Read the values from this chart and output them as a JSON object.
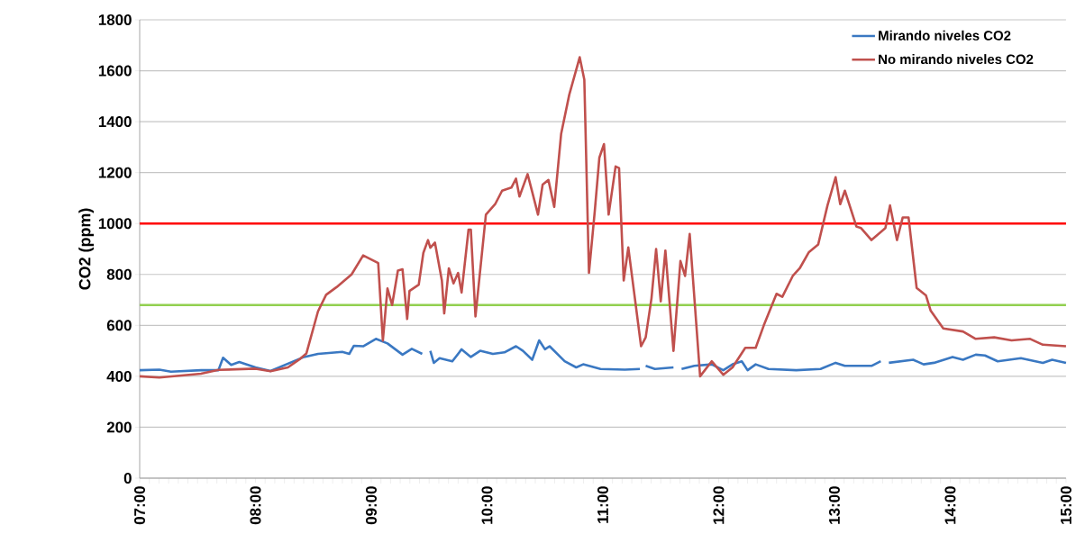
{
  "chart_data": {
    "type": "line",
    "ylabel": "CO2 (ppm)",
    "xlim": [
      7,
      15
    ],
    "ylim": [
      0,
      1800
    ],
    "xticks": [
      {
        "value": 7,
        "label": "07:00"
      },
      {
        "value": 8,
        "label": "08:00"
      },
      {
        "value": 9,
        "label": "09:00"
      },
      {
        "value": 10,
        "label": "10:00"
      },
      {
        "value": 11,
        "label": "11:00"
      },
      {
        "value": 12,
        "label": "12:00"
      },
      {
        "value": 13,
        "label": "13:00"
      },
      {
        "value": 14,
        "label": "14:00"
      },
      {
        "value": 15,
        "label": "15:00"
      }
    ],
    "yticks": [
      0,
      200,
      400,
      600,
      800,
      1000,
      1200,
      1400,
      1600,
      1800
    ],
    "grid": "y",
    "legend": "top right",
    "marker": "none",
    "line_style": "solid",
    "ref_lines": [
      {
        "axis": "y",
        "value": 1000,
        "color": "#ff0000"
      },
      {
        "axis": "y",
        "value": 680,
        "color": "#92d050"
      }
    ],
    "series": [
      {
        "name": "Mirando niveles CO2",
        "color": "#3a78c2",
        "x": [
          7.0,
          7.17,
          7.27,
          7.53,
          7.68,
          7.72,
          7.79,
          7.86,
          8.0,
          8.13,
          8.42,
          8.54,
          8.75,
          8.81,
          8.85,
          8.93,
          9.04,
          9.14,
          9.27,
          9.35,
          9.44,
          9.47,
          9.51,
          9.54,
          9.59,
          9.7,
          9.78,
          9.86,
          9.94,
          10.05,
          10.15,
          10.25,
          10.31,
          10.39,
          10.45,
          10.5,
          10.54,
          10.67,
          10.77,
          10.83,
          10.98,
          11.19,
          11.32,
          11.35,
          11.37,
          11.45,
          11.61,
          11.64,
          11.68,
          11.79,
          11.94,
          12.04,
          12.12,
          12.2,
          12.25,
          12.32,
          12.43,
          12.67,
          12.88,
          13.01,
          13.09,
          13.32,
          13.4,
          13.43,
          13.47,
          13.68,
          13.77,
          13.86,
          14.02,
          14.11,
          14.22,
          14.3,
          14.41,
          14.61,
          14.8,
          14.88,
          15.0
        ],
        "values": [
          424,
          426,
          418,
          424,
          424,
          473,
          445,
          456,
          435,
          421,
          476,
          488,
          496,
          488,
          520,
          518,
          547,
          529,
          485,
          508,
          488,
          null,
          500,
          453,
          471,
          459,
          506,
          476,
          500,
          488,
          494,
          518,
          500,
          465,
          541,
          506,
          518,
          459,
          435,
          447,
          429,
          426,
          429,
          null,
          441,
          429,
          435,
          null,
          429,
          441,
          447,
          424,
          447,
          459,
          424,
          447,
          429,
          424,
          429,
          453,
          441,
          441,
          459,
          null,
          453,
          465,
          447,
          453,
          476,
          465,
          485,
          482,
          459,
          471,
          453,
          465,
          453
        ]
      },
      {
        "name": "No mirando niveles CO2",
        "color": "#c0504d",
        "x": [
          7.0,
          7.17,
          7.53,
          7.68,
          8.0,
          8.13,
          8.28,
          8.39,
          8.44,
          8.54,
          8.61,
          8.7,
          8.83,
          8.93,
          9.06,
          9.1,
          9.14,
          9.18,
          9.23,
          9.27,
          9.31,
          9.33,
          9.41,
          9.45,
          9.49,
          9.51,
          9.55,
          9.61,
          9.63,
          9.67,
          9.71,
          9.75,
          9.78,
          9.84,
          9.86,
          9.9,
          9.99,
          10.07,
          10.13,
          10.21,
          10.25,
          10.28,
          10.35,
          10.39,
          10.44,
          10.48,
          10.53,
          10.58,
          10.64,
          10.71,
          10.8,
          10.84,
          10.88,
          10.93,
          10.97,
          11.01,
          11.05,
          11.11,
          11.14,
          11.18,
          11.22,
          11.33,
          11.37,
          11.42,
          11.46,
          11.5,
          11.54,
          11.61,
          11.67,
          11.71,
          11.75,
          11.84,
          11.94,
          12.04,
          12.12,
          12.23,
          12.32,
          12.39,
          12.5,
          12.55,
          12.64,
          12.7,
          12.78,
          12.86,
          12.94,
          13.01,
          13.05,
          13.09,
          13.19,
          13.23,
          13.32,
          13.44,
          13.48,
          13.54,
          13.59,
          13.64,
          13.71,
          13.79,
          13.83,
          13.94,
          14.11,
          14.22,
          14.38,
          14.53,
          14.69,
          14.8,
          15.0
        ],
        "values": [
          400,
          395,
          410,
          425,
          430,
          420,
          435,
          470,
          490,
          655,
          720,
          750,
          800,
          875,
          845,
          540,
          745,
          680,
          815,
          820,
          625,
          735,
          760,
          885,
          935,
          905,
          925,
          775,
          647,
          824,
          765,
          806,
          729,
          976,
          976,
          635,
          1035,
          1076,
          1129,
          1141,
          1176,
          1106,
          1194,
          1124,
          1035,
          1153,
          1171,
          1065,
          1353,
          1506,
          1653,
          1565,
          806,
          1047,
          1259,
          1312,
          1035,
          1224,
          1218,
          776,
          906,
          518,
          553,
          706,
          900,
          694,
          894,
          500,
          853,
          794,
          959,
          400,
          459,
          406,
          435,
          512,
          512,
          600,
          724,
          712,
          794,
          824,
          888,
          918,
          1071,
          1182,
          1076,
          1129,
          988,
          982,
          935,
          982,
          1071,
          935,
          1024,
          1024,
          747,
          718,
          659,
          588,
          576,
          547,
          553,
          541,
          547,
          524,
          518
        ]
      }
    ]
  }
}
